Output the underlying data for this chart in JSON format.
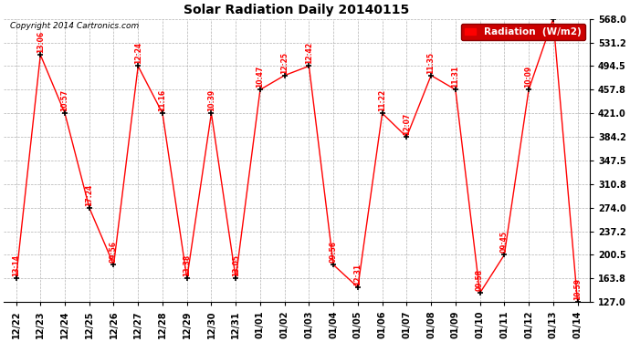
{
  "title": "Solar Radiation Daily 20140115",
  "copyright": "Copyright 2014 Cartronics.com",
  "legend_label": "Radiation  (W/m2)",
  "x_labels": [
    "12/22",
    "12/23",
    "12/24",
    "12/25",
    "12/26",
    "12/27",
    "12/28",
    "12/29",
    "12/30",
    "12/31",
    "01/01",
    "01/02",
    "01/03",
    "01/04",
    "01/05",
    "01/06",
    "01/07",
    "01/08",
    "01/09",
    "01/10",
    "01/11",
    "01/12",
    "01/13",
    "01/14"
  ],
  "y_values": [
    163.8,
    512.0,
    421.0,
    274.0,
    185.0,
    494.5,
    421.0,
    163.8,
    421.0,
    163.8,
    457.8,
    480.0,
    494.5,
    185.0,
    150.0,
    421.0,
    384.2,
    480.0,
    457.8,
    141.0,
    200.5,
    457.8,
    568.0,
    127.0
  ],
  "point_labels": [
    "13:14",
    "13:06",
    "10:57",
    "17:24",
    "09:56",
    "12:24",
    "11:16",
    "13:38",
    "10:39",
    "13:05",
    "10:47",
    "12:25",
    "12:42",
    "09:56",
    "12:31",
    "11:22",
    "12:07",
    "11:35",
    "11:31",
    "09:58",
    "09:45",
    "10:09",
    "",
    "10:59"
  ],
  "ylim_min": 127.0,
  "ylim_max": 568.0,
  "yticks": [
    127.0,
    163.8,
    200.5,
    237.2,
    274.0,
    310.8,
    347.5,
    384.2,
    421.0,
    457.8,
    494.5,
    531.2,
    568.0
  ],
  "line_color": "red",
  "marker_color": "black",
  "bg_color": "#ffffff",
  "grid_color": "#aaaaaa",
  "label_color": "red",
  "title_color": "black",
  "legend_bg": "#cc0000",
  "legend_fg": "white"
}
